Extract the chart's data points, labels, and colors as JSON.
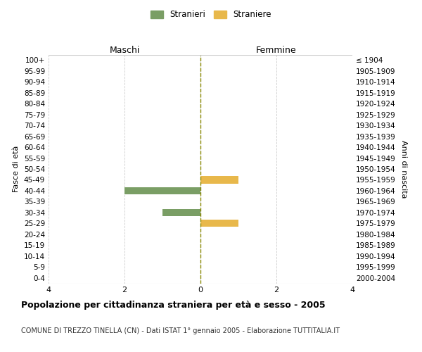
{
  "age_groups": [
    "100+",
    "95-99",
    "90-94",
    "85-89",
    "80-84",
    "75-79",
    "70-74",
    "65-69",
    "60-64",
    "55-59",
    "50-54",
    "45-49",
    "40-44",
    "35-39",
    "30-34",
    "25-29",
    "20-24",
    "15-19",
    "10-14",
    "5-9",
    "0-4"
  ],
  "birth_years": [
    "≤ 1904",
    "1905-1909",
    "1910-1914",
    "1915-1919",
    "1920-1924",
    "1925-1929",
    "1930-1934",
    "1935-1939",
    "1940-1944",
    "1945-1949",
    "1950-1954",
    "1955-1959",
    "1960-1964",
    "1965-1969",
    "1970-1974",
    "1975-1979",
    "1980-1984",
    "1985-1989",
    "1990-1994",
    "1995-1999",
    "2000-2004"
  ],
  "males": [
    0,
    0,
    0,
    0,
    0,
    0,
    0,
    0,
    0,
    0,
    0,
    0,
    2,
    0,
    1,
    0,
    0,
    0,
    0,
    0,
    0
  ],
  "females": [
    0,
    0,
    0,
    0,
    0,
    0,
    0,
    0,
    0,
    0,
    0,
    1,
    0,
    0,
    0,
    1,
    0,
    0,
    0,
    0,
    0
  ],
  "male_color": "#7a9e65",
  "female_color": "#e8b84b",
  "xlim": [
    -4,
    4
  ],
  "ylabel_left": "Fasce di età",
  "ylabel_right": "Anni di nascita",
  "header_left": "Maschi",
  "header_right": "Femmine",
  "title": "Popolazione per cittadinanza straniera per età e sesso - 2005",
  "subtitle": "COMUNE DI TREZZO TINELLA (CN) - Dati ISTAT 1° gennaio 2005 - Elaborazione TUTTITALIA.IT",
  "legend_male": "Stranieri",
  "legend_female": "Straniere",
  "background_color": "#ffffff",
  "grid_color": "#cccccc",
  "xticks": [
    -4,
    -2,
    0,
    2,
    4
  ],
  "xtick_labels": [
    "4",
    "2",
    "0",
    "2",
    "4"
  ]
}
